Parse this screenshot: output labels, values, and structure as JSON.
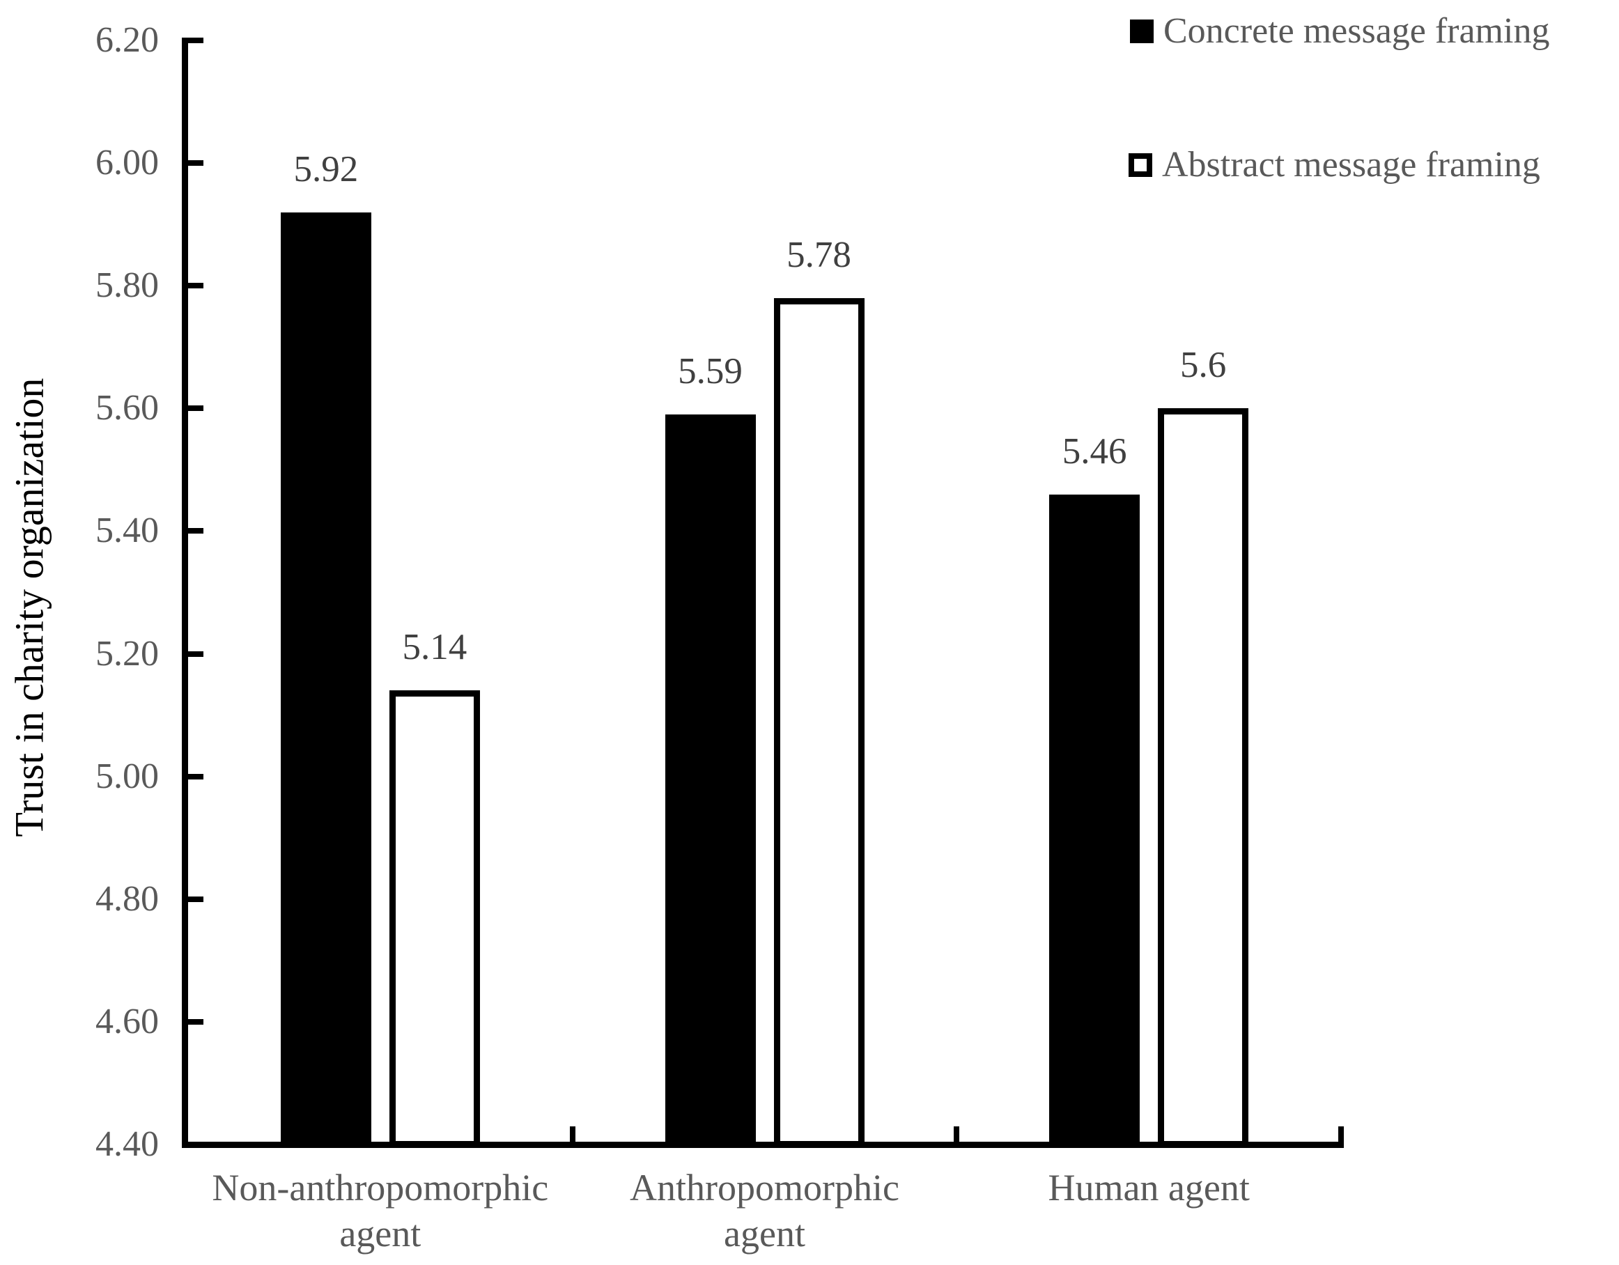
{
  "chart_data": {
    "type": "bar",
    "title": "",
    "xlabel": "",
    "ylabel": "Trust in charity organization",
    "categories": [
      [
        "Non-anthropomorphic",
        "agent"
      ],
      [
        "Anthropomorphic",
        "agent"
      ],
      [
        "Human agent"
      ]
    ],
    "series": [
      {
        "name": "Concrete message framing",
        "fill": "black",
        "values": [
          5.92,
          5.59,
          5.46
        ],
        "value_labels": [
          "5.92",
          "5.59",
          "5.46"
        ]
      },
      {
        "name": "Abstract message framing",
        "fill": "white",
        "values": [
          5.14,
          5.78,
          5.6
        ],
        "value_labels": [
          "5.14",
          "5.78",
          "5.6"
        ]
      }
    ],
    "ylim": [
      4.4,
      6.2
    ],
    "ytick_step": 0.2,
    "yticks": [
      "6.20",
      "6.00",
      "5.80",
      "5.60",
      "5.40",
      "5.20",
      "5.00",
      "4.80",
      "4.60",
      "4.40"
    ],
    "grid": false,
    "legend_position": "top-right"
  },
  "colors": {
    "bar_solid": "#000000",
    "bar_hollow_fill": "#ffffff",
    "axis": "#000000",
    "ytick_label": "#595959",
    "data_label": "#404040",
    "category_label": "#595959",
    "legend_label": "#595959",
    "y_title": "#000000",
    "background": "#ffffff"
  }
}
